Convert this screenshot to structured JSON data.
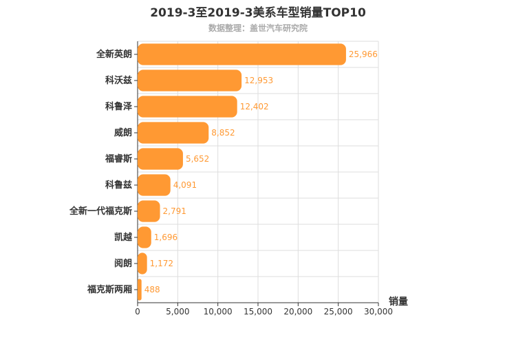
{
  "chart_data": {
    "type": "bar",
    "orientation": "horizontal",
    "title": "2019-3至2019-3美系车型销量TOP10",
    "subtitle": "数据整理：盖世汽车研究院",
    "xlabel": "销量",
    "xlim": [
      0,
      30000
    ],
    "xticks": [
      "0",
      "5,000",
      "10,000",
      "15,000",
      "20,000",
      "25,000",
      "30,000"
    ],
    "grid": true,
    "color": "#ff9933",
    "categories": [
      "全新英朗",
      "科沃兹",
      "科鲁泽",
      "威朗",
      "福睿斯",
      "科鲁兹",
      "全新一代福克斯",
      "凯越",
      "阅朗",
      "福克斯两厢"
    ],
    "values": [
      25966,
      12953,
      12402,
      8852,
      5652,
      4091,
      2791,
      1696,
      1172,
      488
    ],
    "value_labels": [
      "25,966",
      "12,953",
      "12,402",
      "8,852",
      "5,652",
      "4,091",
      "2,791",
      "1,696",
      "1,172",
      "488"
    ]
  }
}
